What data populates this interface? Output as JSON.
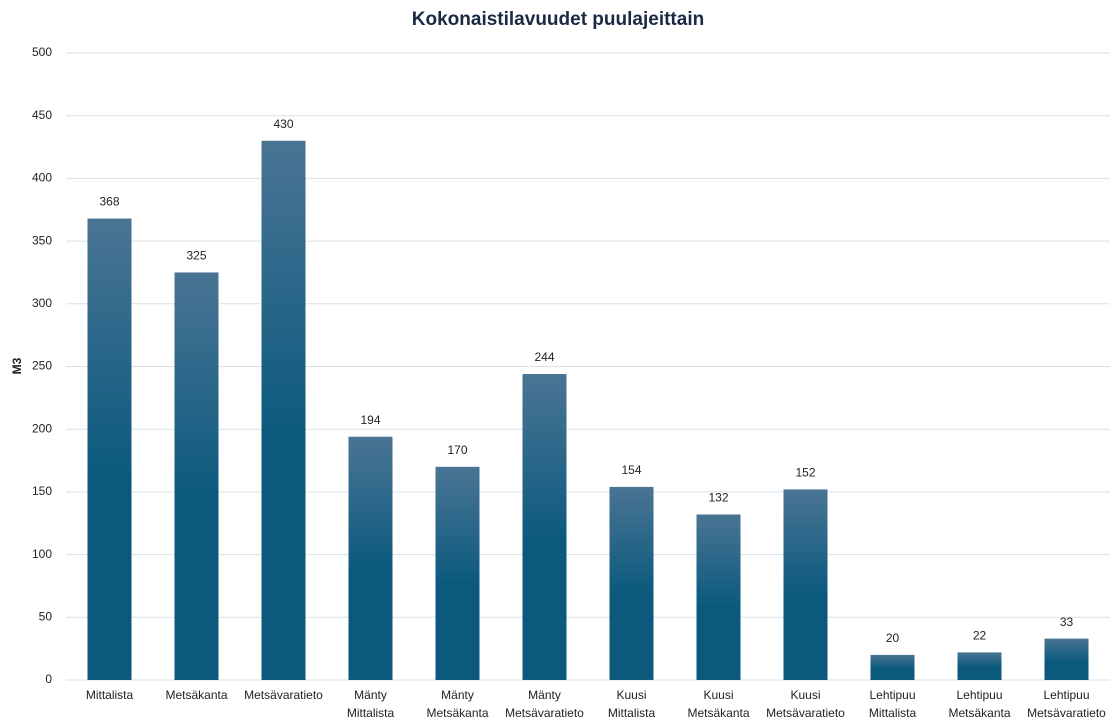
{
  "chart_data": {
    "type": "bar",
    "title": "Kokonaistilavuudet puulajeittain",
    "y_label": "M3",
    "categories": [
      "Mittalista",
      "Metsäkanta",
      "Metsävaratieto",
      "Mänty Mittalista",
      "Mänty Metsäkanta",
      "Mänty Metsävaratieto",
      "Kuusi Mittalista",
      "Kuusi Metsäkanta",
      "Kuusi Metsävaratieto",
      "Lehtipuu Mittalista",
      "Lehtipuu Metsäkanta",
      "Lehtipuu Metsävaratieto"
    ],
    "values": [
      368,
      325,
      430,
      194,
      170,
      244,
      154,
      132,
      152,
      20,
      22,
      33
    ],
    "color": "#0b5a7e",
    "ylim": [
      0,
      500
    ],
    "yticks": [
      0,
      50,
      100,
      150,
      200,
      250,
      300,
      350,
      400,
      450,
      500
    ],
    "grid": true
  }
}
